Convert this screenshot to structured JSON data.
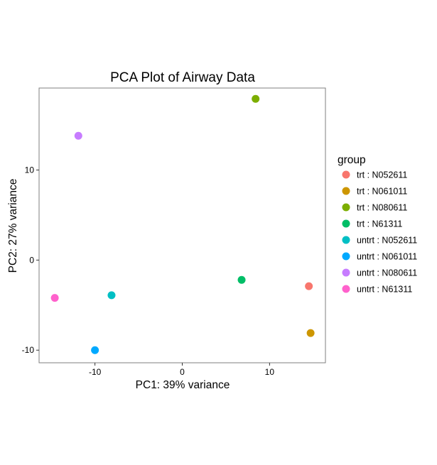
{
  "chart_data": {
    "type": "scatter",
    "title": "PCA Plot of Airway Data",
    "xlabel": "PC1: 39% variance",
    "ylabel": "PC2: 27% variance",
    "xlim": [
      -16.4,
      16.4
    ],
    "ylim": [
      -11.4,
      19.1
    ],
    "xticks": [
      -10,
      0,
      10
    ],
    "yticks": [
      -10,
      0,
      10
    ],
    "grid": false,
    "legend_title": "group",
    "legend_position": "right",
    "series": [
      {
        "name": "trt : N052611",
        "color": "#F8766D",
        "points": [
          [
            14.5,
            -2.9
          ]
        ]
      },
      {
        "name": "trt : N061011",
        "color": "#CD9600",
        "points": [
          [
            14.7,
            -8.1
          ]
        ]
      },
      {
        "name": "trt : N080611",
        "color": "#7CAE00",
        "points": [
          [
            8.4,
            17.9
          ]
        ]
      },
      {
        "name": "trt : N61311",
        "color": "#00BE67",
        "points": [
          [
            6.8,
            -2.2
          ]
        ]
      },
      {
        "name": "untrt : N052611",
        "color": "#00BFC4",
        "points": [
          [
            -8.1,
            -3.9
          ]
        ]
      },
      {
        "name": "untrt : N061011",
        "color": "#00A9FF",
        "points": [
          [
            -10.0,
            -10.0
          ]
        ]
      },
      {
        "name": "untrt : N080611",
        "color": "#C77CFF",
        "points": [
          [
            -11.9,
            13.8
          ]
        ]
      },
      {
        "name": "untrt : N61311",
        "color": "#FF61CC",
        "points": [
          [
            -14.6,
            -4.2
          ]
        ]
      }
    ]
  }
}
